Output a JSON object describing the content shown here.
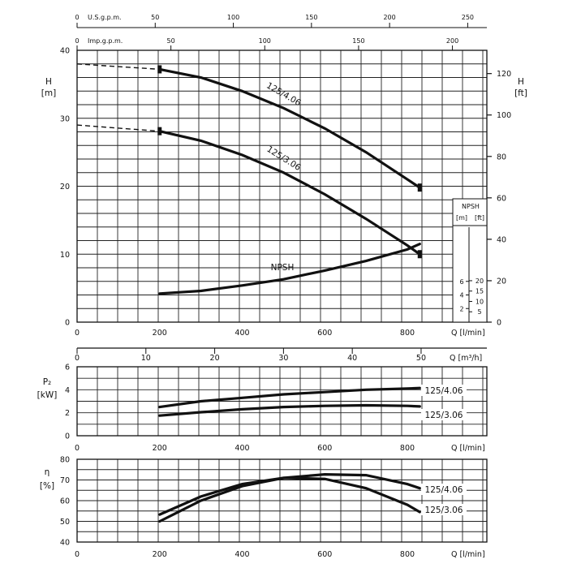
{
  "chart_data": [
    {
      "type": "line",
      "id": "head",
      "x": [
        200,
        300,
        400,
        500,
        600,
        700,
        800,
        830
      ],
      "xlabel": "Q [l/min]",
      "xticks": [
        "0",
        "200",
        "400",
        "600",
        "800"
      ],
      "ylabel_left": [
        "H",
        "[m]"
      ],
      "ylabel_right": [
        "H",
        "[ft]"
      ],
      "ylim": [
        0,
        40
      ],
      "yticks_left": [
        "0",
        "10",
        "20",
        "30",
        "40"
      ],
      "yticks_right": [
        "0",
        "20",
        "40",
        "60",
        "80",
        "100",
        "120"
      ],
      "ylim_right_ft": [
        0,
        131.2
      ],
      "series": [
        {
          "name": "125/4.06",
          "values": [
            37.2,
            36.0,
            34.0,
            31.5,
            28.5,
            25.0,
            21.0,
            19.8
          ],
          "extrapolated": {
            "x": [
              0,
              200
            ],
            "values": [
              38.0,
              37.2
            ]
          }
        },
        {
          "name": "125/3.06",
          "values": [
            28.1,
            26.7,
            24.6,
            22.0,
            18.8,
            15.2,
            11.3,
            10.0
          ],
          "extrapolated": {
            "x": [
              0,
              200
            ],
            "values": [
              29.0,
              28.1
            ]
          }
        },
        {
          "name": "NPSH",
          "values": [
            4.2,
            4.6,
            5.4,
            6.3,
            7.6,
            9.0,
            10.7,
            11.5
          ]
        }
      ],
      "top_axis_usgpm": {
        "label": "U.S.g.p.m.",
        "ticks": [
          "0",
          "50",
          "100",
          "150",
          "200",
          "250"
        ]
      },
      "top_axis_impgpm": {
        "label": "Imp.g.p.m.",
        "ticks": [
          "0",
          "50",
          "100",
          "150",
          "200"
        ]
      },
      "npsh_inset": {
        "title": "NPSH",
        "units": [
          "[m]",
          "[ft]"
        ],
        "m_ticks": [
          "2",
          "4",
          "6"
        ],
        "ft_ticks": [
          "5",
          "10",
          "15",
          "20"
        ]
      },
      "m3h_axis": {
        "label": "Q [m³/h]",
        "ticks": [
          "0",
          "10",
          "20",
          "30",
          "40",
          "50"
        ]
      }
    },
    {
      "type": "line",
      "id": "power",
      "x": [
        200,
        300,
        400,
        500,
        600,
        700,
        800,
        830
      ],
      "xlabel": "Q [l/min]",
      "xticks": [
        "0",
        "200",
        "400",
        "600",
        "800"
      ],
      "ylabel": [
        "P₂",
        "[kW]"
      ],
      "ylim": [
        0,
        6
      ],
      "yticks": [
        "0",
        "2",
        "4",
        "6"
      ],
      "series": [
        {
          "name": "125/4.06",
          "values": [
            2.5,
            3.0,
            3.3,
            3.6,
            3.8,
            4.0,
            4.1,
            4.15
          ]
        },
        {
          "name": "125/3.06",
          "values": [
            1.75,
            2.05,
            2.3,
            2.5,
            2.6,
            2.65,
            2.6,
            2.55
          ]
        }
      ]
    },
    {
      "type": "line",
      "id": "efficiency",
      "x": [
        200,
        300,
        400,
        500,
        600,
        700,
        800,
        830
      ],
      "xlabel": "Q [l/min]",
      "xticks": [
        "0",
        "200",
        "400",
        "600",
        "800"
      ],
      "ylabel": [
        "η",
        "[%]"
      ],
      "ylim": [
        40,
        80
      ],
      "yticks": [
        "40",
        "50",
        "60",
        "70",
        "80"
      ],
      "series": [
        {
          "name": "125/4.06",
          "values": [
            50.0,
            60.0,
            67.0,
            71.0,
            72.7,
            72.3,
            68.0,
            66.0
          ]
        },
        {
          "name": "125/3.06",
          "values": [
            53.3,
            62.0,
            68.0,
            71.0,
            70.5,
            66.0,
            58.0,
            54.5
          ]
        }
      ]
    }
  ]
}
